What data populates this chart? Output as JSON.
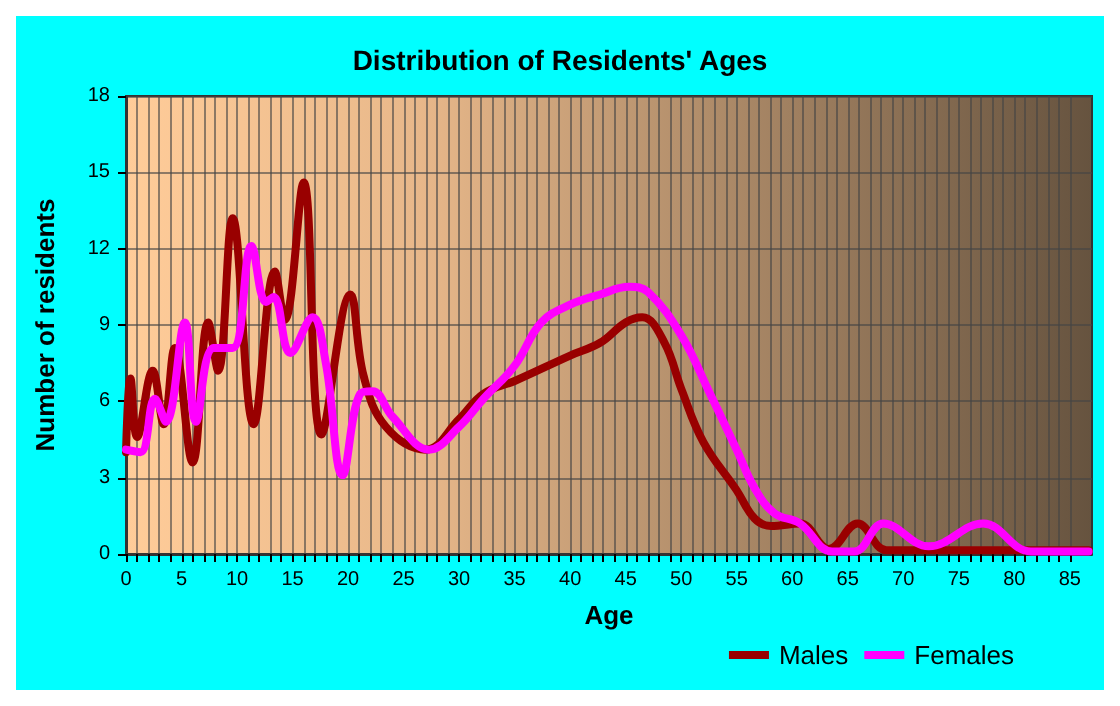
{
  "chart_data": {
    "type": "line",
    "title": "Distribution of Residents' Ages",
    "xlabel": "Age",
    "ylabel": "Number of residents",
    "xlim": [
      0,
      87
    ],
    "xticks": [
      0,
      5,
      10,
      15,
      20,
      25,
      30,
      35,
      40,
      45,
      50,
      55,
      60,
      65,
      70,
      75,
      80,
      85
    ],
    "ylim": [
      0,
      18
    ],
    "yticks": [
      0,
      3,
      6,
      9,
      12,
      15,
      18
    ],
    "grid": true,
    "legend": "bottom right",
    "marker": "none",
    "line_style": "solid",
    "series": [
      {
        "name": "Males",
        "color": "#990000",
        "x": [
          0,
          0.4,
          1,
          2.4,
          3.4,
          4.4,
          6,
          7.4,
          8.3,
          9.6,
          11.5,
          13.4,
          14.3,
          16,
          17.6,
          20.2,
          21.4,
          23.4,
          27,
          30,
          32.2,
          35,
          40,
          42.7,
          45,
          46.5,
          48.5,
          50,
          52,
          55,
          56.6,
          58.1,
          60.7,
          63.3,
          65.9,
          68.5,
          72.3,
          86.7
        ],
        "values": [
          4,
          6.9,
          4.6,
          7.2,
          5.1,
          8.1,
          3.6,
          9.1,
          7.2,
          13.2,
          5.1,
          11.1,
          9.2,
          14.6,
          4.7,
          10.2,
          7,
          5,
          4.1,
          5.3,
          6.3,
          6.8,
          7.8,
          8.3,
          9.1,
          9.3,
          8.3,
          6.5,
          4.4,
          2.5,
          1.4,
          1.1,
          1.2,
          0.2,
          1.2,
          0.15,
          0.15,
          0.15
        ]
      },
      {
        "name": "Females",
        "color": "#ff00ff",
        "x": [
          0,
          1.3,
          2.6,
          3.6,
          5.3,
          6.3,
          7.9,
          9.6,
          11.3,
          12.6,
          13.3,
          14.8,
          16.8,
          18,
          19.5,
          21.1,
          22.2,
          24,
          27.3,
          30,
          32.2,
          35,
          37.4,
          40,
          42.7,
          45.3,
          47,
          50,
          52.6,
          55,
          56.6,
          58.4,
          60.7,
          63.6,
          65.6,
          68.2,
          72.3,
          77.2,
          81.5,
          86.7
        ],
        "values": [
          4.1,
          4,
          6.1,
          5.2,
          9.1,
          5.2,
          8.1,
          8.1,
          12.1,
          9.9,
          10.1,
          7.9,
          9.3,
          7.5,
          3.1,
          6.3,
          6.4,
          5.4,
          4.1,
          5,
          6.1,
          7.4,
          9.1,
          9.8,
          10.2,
          10.5,
          10.3,
          8.6,
          6.3,
          4.1,
          2.6,
          1.6,
          1.2,
          0.1,
          0.1,
          1.2,
          0.3,
          1.2,
          0.1,
          0.1
        ]
      }
    ]
  }
}
